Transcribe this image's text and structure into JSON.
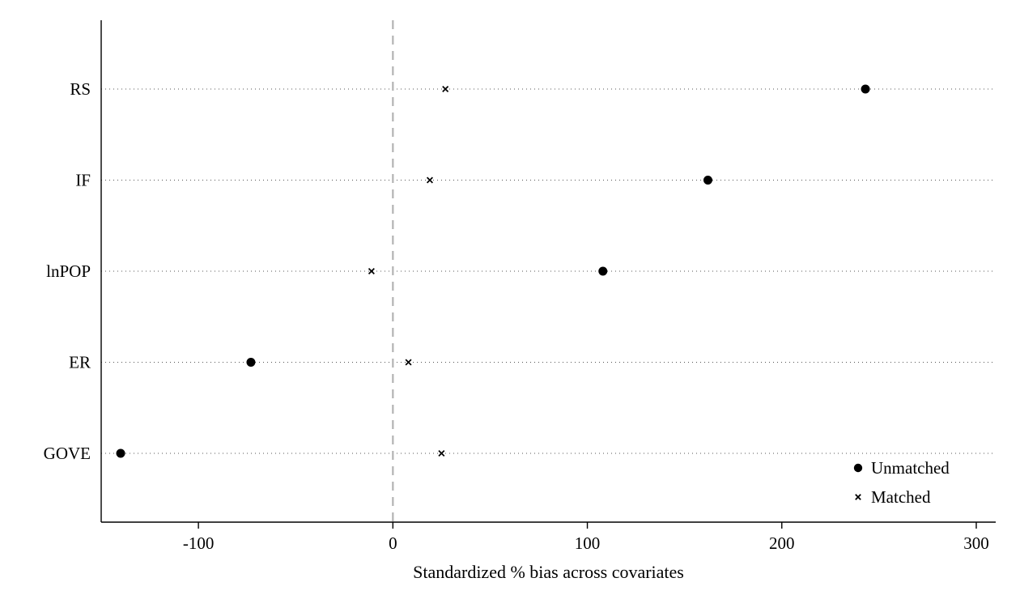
{
  "chart_data": {
    "type": "scatter",
    "title": "",
    "xlabel": "Standardized % bias across covariates",
    "ylabel": "",
    "categories": [
      "RS",
      "IF",
      "lnPOP",
      "ER",
      "GOVE"
    ],
    "xlim": [
      -150,
      310
    ],
    "xticks": [
      -100,
      0,
      100,
      200,
      300
    ],
    "reference_line_x": 0,
    "grid": "dotted-horizontal",
    "legend_position": "bottom-right-inside",
    "series": [
      {
        "name": "Unmatched",
        "marker": "circle",
        "values": [
          243,
          162,
          108,
          -73,
          -140
        ]
      },
      {
        "name": "Matched",
        "marker": "x",
        "values": [
          27,
          19,
          -11,
          8,
          25
        ]
      }
    ],
    "colors": {
      "marker": "#000000",
      "axis": "#000000",
      "grid": "#555555",
      "reference_line": "#b3b3b3",
      "background": "#ffffff"
    }
  }
}
